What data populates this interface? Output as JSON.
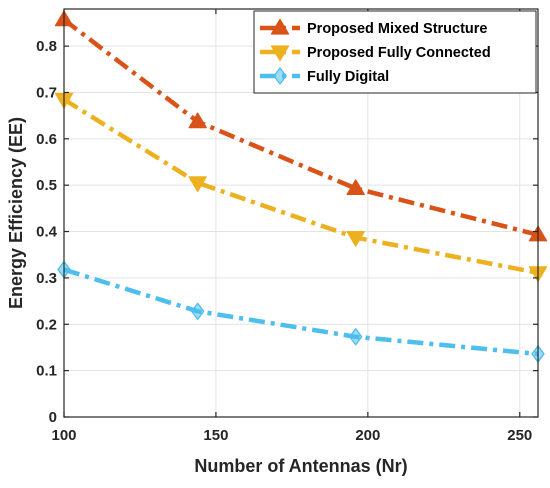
{
  "chart_data": {
    "type": "line",
    "xlabel": "Number of Antennas (Nr)",
    "ylabel": "Energy Efficiency (EE)",
    "xlim": [
      100,
      256
    ],
    "ylim": [
      0,
      0.88
    ],
    "xticks": [
      "100",
      "150",
      "200",
      "250"
    ],
    "yticks": [
      "0",
      "0.1",
      "0.2",
      "0.3",
      "0.4",
      "0.5",
      "0.6",
      "0.7",
      "0.8"
    ],
    "grid": true,
    "legend_position": "top-right",
    "series": [
      {
        "name": "Proposed Mixed Structure",
        "color": "#D95319",
        "marker": "triangle-up",
        "x": [
          100,
          144,
          196,
          256
        ],
        "y": [
          0.857,
          0.637,
          0.493,
          0.393
        ]
      },
      {
        "name": "Proposed Fully Connected",
        "color": "#EDB120",
        "marker": "triangle-down",
        "x": [
          100,
          144,
          196,
          256
        ],
        "y": [
          0.685,
          0.505,
          0.387,
          0.311
        ]
      },
      {
        "name": "Fully Digital",
        "color": "#4DBEEE",
        "marker": "diamond",
        "x": [
          100,
          144,
          196,
          256
        ],
        "y": [
          0.318,
          0.228,
          0.173,
          0.136
        ]
      }
    ]
  }
}
